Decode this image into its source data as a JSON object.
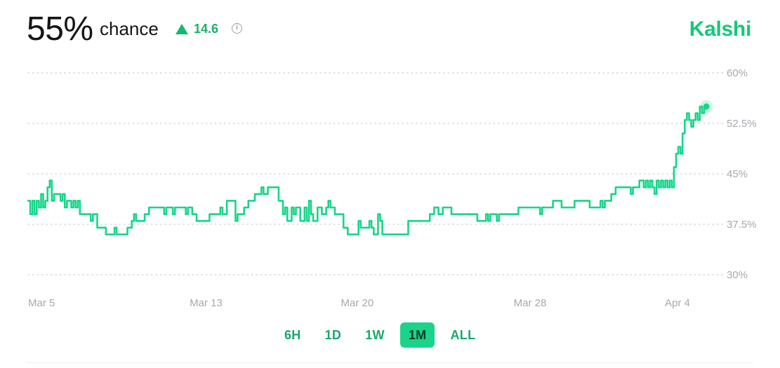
{
  "header": {
    "percent": "55%",
    "chance_label": "chance",
    "delta": "14.6",
    "brand": "Kalshi"
  },
  "range_buttons": [
    {
      "label": "6H",
      "active": false
    },
    {
      "label": "1D",
      "active": false
    },
    {
      "label": "1W",
      "active": false
    },
    {
      "label": "1M",
      "active": true
    },
    {
      "label": "ALL",
      "active": false
    }
  ],
  "colors": {
    "line": "#16d688",
    "brand": "#12c97a",
    "grid": "#c9cdd1",
    "tick": "#a4a9ae"
  },
  "chart_data": {
    "type": "line",
    "title": "",
    "xlabel": "",
    "ylabel": "",
    "ylim": [
      30,
      60
    ],
    "xlim": [
      "2025-03-05",
      "2025-04-04"
    ],
    "yticks": [
      60,
      52.5,
      45,
      37.5,
      30
    ],
    "ytick_labels": [
      "60%",
      "52.5%",
      "45%",
      "37.5%",
      "30%"
    ],
    "xtick_labels": [
      {
        "label": "Mar 5",
        "x": 0
      },
      {
        "label": "Mar 13",
        "x": 8
      },
      {
        "label": "Mar 20",
        "x": 15
      },
      {
        "label": "Mar 28",
        "x": 23
      },
      {
        "label": "Apr 4",
        "x": 30
      }
    ],
    "grid": true,
    "legend": "none",
    "x_unit": "days since Mar 5",
    "series": [
      {
        "values": [
          [
            0.0,
            41
          ],
          [
            0.1,
            39
          ],
          [
            0.2,
            41
          ],
          [
            0.3,
            39
          ],
          [
            0.4,
            41
          ],
          [
            0.5,
            40
          ],
          [
            0.6,
            42
          ],
          [
            0.7,
            40
          ],
          [
            0.8,
            41
          ],
          [
            0.9,
            43
          ],
          [
            1.0,
            44
          ],
          [
            1.1,
            41
          ],
          [
            1.2,
            42
          ],
          [
            1.4,
            42
          ],
          [
            1.5,
            41
          ],
          [
            1.6,
            42
          ],
          [
            1.7,
            40
          ],
          [
            1.8,
            41
          ],
          [
            2.0,
            40
          ],
          [
            2.1,
            41
          ],
          [
            2.2,
            40
          ],
          [
            2.3,
            41
          ],
          [
            2.4,
            39
          ],
          [
            2.8,
            39
          ],
          [
            2.9,
            38
          ],
          [
            3.0,
            39
          ],
          [
            3.2,
            37
          ],
          [
            3.5,
            37
          ],
          [
            3.6,
            36
          ],
          [
            3.9,
            36
          ],
          [
            4.0,
            37
          ],
          [
            4.1,
            36
          ],
          [
            4.5,
            36
          ],
          [
            4.6,
            37
          ],
          [
            4.8,
            38
          ],
          [
            4.9,
            39
          ],
          [
            5.0,
            38
          ],
          [
            5.2,
            38
          ],
          [
            5.4,
            39
          ],
          [
            5.6,
            40
          ],
          [
            6.2,
            40
          ],
          [
            6.3,
            39
          ],
          [
            6.4,
            40
          ],
          [
            6.6,
            40
          ],
          [
            6.7,
            39
          ],
          [
            6.8,
            40
          ],
          [
            7.2,
            40
          ],
          [
            7.3,
            39
          ],
          [
            7.4,
            40
          ],
          [
            7.6,
            39
          ],
          [
            7.8,
            38
          ],
          [
            8.2,
            38
          ],
          [
            8.4,
            39
          ],
          [
            8.8,
            39
          ],
          [
            8.9,
            40
          ],
          [
            9.0,
            39
          ],
          [
            9.2,
            41
          ],
          [
            9.5,
            41
          ],
          [
            9.6,
            38
          ],
          [
            9.7,
            39
          ],
          [
            10.0,
            40
          ],
          [
            10.2,
            41
          ],
          [
            10.4,
            41
          ],
          [
            10.5,
            42
          ],
          [
            10.7,
            42
          ],
          [
            10.8,
            43
          ],
          [
            10.9,
            42
          ],
          [
            11.0,
            42
          ],
          [
            11.1,
            43
          ],
          [
            11.5,
            43
          ],
          [
            11.6,
            41
          ],
          [
            11.8,
            39
          ],
          [
            11.9,
            40
          ],
          [
            12.0,
            38
          ],
          [
            12.2,
            40
          ],
          [
            12.3,
            39
          ],
          [
            12.4,
            40
          ],
          [
            12.6,
            38
          ],
          [
            12.8,
            40
          ],
          [
            12.9,
            38
          ],
          [
            13.0,
            41
          ],
          [
            13.1,
            39
          ],
          [
            13.2,
            38
          ],
          [
            13.4,
            40
          ],
          [
            13.5,
            40
          ],
          [
            13.6,
            39
          ],
          [
            13.8,
            40
          ],
          [
            13.9,
            41
          ],
          [
            14.0,
            40
          ],
          [
            14.1,
            40
          ],
          [
            14.2,
            39
          ],
          [
            14.4,
            39
          ],
          [
            14.6,
            37
          ],
          [
            14.8,
            36
          ],
          [
            15.2,
            36
          ],
          [
            15.3,
            38
          ],
          [
            15.4,
            37
          ],
          [
            15.6,
            37
          ],
          [
            15.8,
            38
          ],
          [
            15.9,
            37
          ],
          [
            16.0,
            36
          ],
          [
            16.2,
            39
          ],
          [
            16.3,
            38
          ],
          [
            16.4,
            36
          ],
          [
            17.4,
            36
          ],
          [
            17.6,
            38
          ],
          [
            18.4,
            38
          ],
          [
            18.6,
            39
          ],
          [
            18.8,
            40
          ],
          [
            19.0,
            39
          ],
          [
            19.2,
            40
          ],
          [
            19.4,
            40
          ],
          [
            19.6,
            39
          ],
          [
            20.6,
            39
          ],
          [
            20.8,
            38
          ],
          [
            21.0,
            38
          ],
          [
            21.2,
            39
          ],
          [
            21.3,
            38
          ],
          [
            21.4,
            39
          ],
          [
            21.6,
            39
          ],
          [
            21.7,
            38
          ],
          [
            21.8,
            39
          ],
          [
            22.6,
            39
          ],
          [
            22.7,
            40
          ],
          [
            23.6,
            40
          ],
          [
            23.7,
            39
          ],
          [
            23.8,
            40
          ],
          [
            24.2,
            40
          ],
          [
            24.3,
            41
          ],
          [
            24.6,
            41
          ],
          [
            24.7,
            40
          ],
          [
            25.0,
            40
          ],
          [
            25.3,
            41
          ],
          [
            25.9,
            41
          ],
          [
            26.0,
            40
          ],
          [
            26.4,
            40
          ],
          [
            26.5,
            41
          ],
          [
            26.6,
            40
          ],
          [
            26.7,
            41
          ],
          [
            26.9,
            41
          ],
          [
            27.0,
            42
          ],
          [
            27.2,
            43
          ],
          [
            27.8,
            43
          ],
          [
            27.9,
            42
          ],
          [
            28.0,
            43
          ],
          [
            28.2,
            43
          ],
          [
            28.3,
            44
          ],
          [
            28.5,
            43
          ],
          [
            28.6,
            44
          ],
          [
            28.7,
            43
          ],
          [
            28.8,
            44
          ],
          [
            28.9,
            43
          ],
          [
            29.0,
            42
          ],
          [
            29.1,
            44
          ],
          [
            29.2,
            43
          ],
          [
            29.3,
            44
          ],
          [
            29.4,
            43
          ],
          [
            29.5,
            44
          ],
          [
            29.6,
            43
          ],
          [
            29.7,
            44
          ],
          [
            29.8,
            43
          ],
          [
            29.9,
            46
          ],
          [
            30.0,
            48
          ],
          [
            30.1,
            49
          ],
          [
            30.2,
            48
          ],
          [
            30.3,
            51
          ],
          [
            30.4,
            53
          ],
          [
            30.5,
            54
          ],
          [
            30.6,
            53
          ],
          [
            30.7,
            52
          ],
          [
            30.8,
            53
          ],
          [
            30.9,
            54
          ],
          [
            31.0,
            53
          ],
          [
            31.1,
            55
          ],
          [
            31.2,
            54
          ],
          [
            31.3,
            55
          ],
          [
            31.4,
            55
          ]
        ]
      }
    ]
  }
}
